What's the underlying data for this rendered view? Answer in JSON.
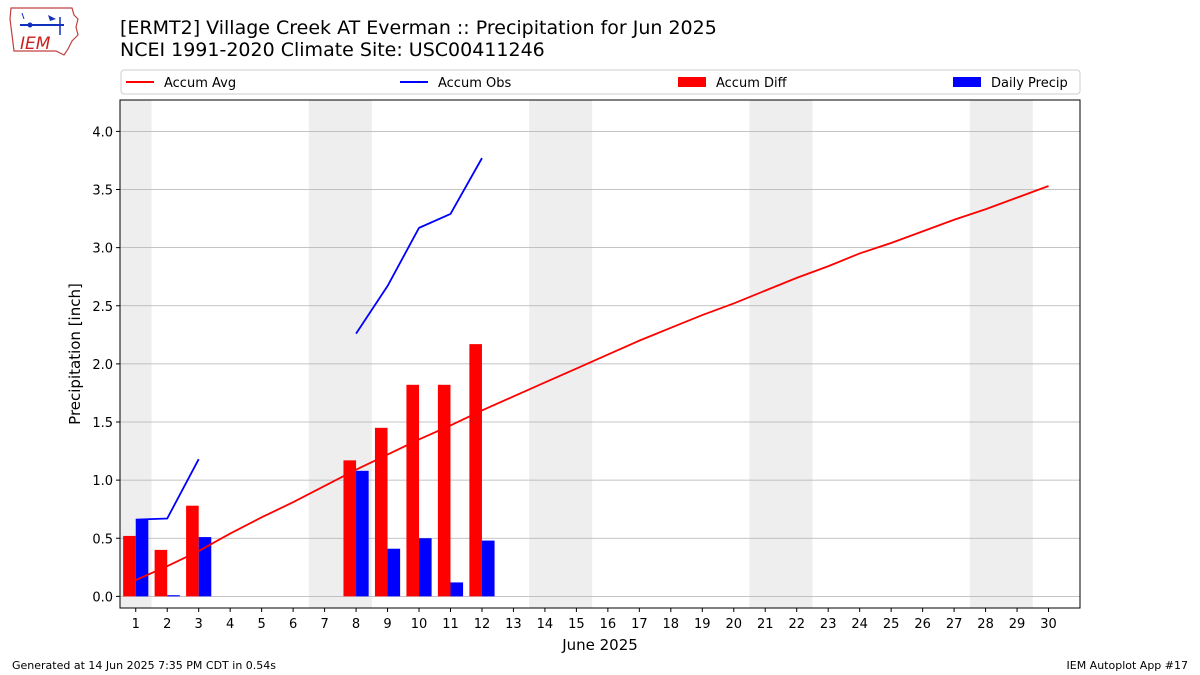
{
  "header": {
    "title_line1": "[ERMT2] Village Creek  AT Everman :: Precipitation for Jun 2025",
    "title_line2": "NCEI 1991-2020 Climate Site: USC00411246",
    "logo_text": "IEM"
  },
  "footer": {
    "left": "Generated at 14 Jun 2025 7:35 PM CDT in 0.54s",
    "right": "IEM Autoplot App #17"
  },
  "colors": {
    "accum_avg": "#ff0000",
    "accum_obs": "#0000ff",
    "accum_diff": "#ff0000",
    "daily_precip": "#0000ff",
    "weekend_band": "#eeeeee",
    "grid": "#b0b0b0"
  },
  "chart_data": {
    "type": "bar",
    "title": "[ERMT2] Village Creek  AT Everman :: Precipitation for Jun 2025",
    "subtitle": "NCEI 1991-2020 Climate Site: USC00411246",
    "xlabel": "June 2025",
    "ylabel": "Precipitation [inch]",
    "xlim": [
      0.5,
      31.0
    ],
    "ylim": [
      -0.1,
      4.27
    ],
    "grid": "horizontal",
    "legend_position": "top",
    "x_ticks": [
      1,
      2,
      3,
      4,
      5,
      6,
      7,
      8,
      9,
      10,
      11,
      12,
      13,
      14,
      15,
      16,
      17,
      18,
      19,
      20,
      21,
      22,
      23,
      24,
      25,
      26,
      27,
      28,
      29,
      30
    ],
    "y_ticks": [
      0.0,
      0.5,
      1.0,
      1.5,
      2.0,
      2.5,
      3.0,
      3.5,
      4.0
    ],
    "y_tick_labels": [
      "0.0",
      "0.5",
      "1.0",
      "1.5",
      "2.0",
      "2.5",
      "3.0",
      "3.5",
      "4.0"
    ],
    "shaded_days": [
      [
        0.5,
        1.5
      ],
      [
        6.5,
        8.5
      ],
      [
        13.5,
        15.5
      ],
      [
        20.5,
        22.5
      ],
      [
        27.5,
        29.5
      ]
    ],
    "series": [
      {
        "name": "Accum Avg",
        "kind": "line",
        "x": [
          1,
          2,
          3,
          4,
          5,
          6,
          7,
          8,
          9,
          10,
          11,
          12,
          13,
          14,
          15,
          16,
          17,
          18,
          19,
          20,
          21,
          22,
          23,
          24,
          25,
          26,
          27,
          28,
          29,
          30
        ],
        "y": [
          0.14,
          0.26,
          0.39,
          0.54,
          0.68,
          0.81,
          0.95,
          1.09,
          1.22,
          1.35,
          1.47,
          1.6,
          1.72,
          1.84,
          1.96,
          2.08,
          2.2,
          2.31,
          2.42,
          2.52,
          2.63,
          2.74,
          2.84,
          2.95,
          3.04,
          3.14,
          3.24,
          3.33,
          3.43,
          3.53
        ]
      },
      {
        "name": "Accum Obs",
        "kind": "line",
        "segments": [
          {
            "x": [
              1,
              2,
              3
            ],
            "y": [
              0.66,
              0.67,
              1.18
            ]
          },
          {
            "x": [
              8,
              9,
              10,
              11,
              12
            ],
            "y": [
              2.26,
              2.67,
              3.17,
              3.29,
              3.77
            ]
          }
        ]
      },
      {
        "name": "Accum Diff",
        "kind": "bar",
        "x": [
          1,
          2,
          3,
          8,
          9,
          10,
          11,
          12
        ],
        "y": [
          0.52,
          0.4,
          0.78,
          1.17,
          1.45,
          1.82,
          1.82,
          2.17
        ]
      },
      {
        "name": "Daily Precip",
        "kind": "bar",
        "x": [
          1,
          2,
          3,
          8,
          9,
          10,
          11,
          12
        ],
        "y": [
          0.66,
          0.01,
          0.51,
          1.08,
          0.41,
          0.5,
          0.12,
          0.48
        ]
      }
    ]
  }
}
